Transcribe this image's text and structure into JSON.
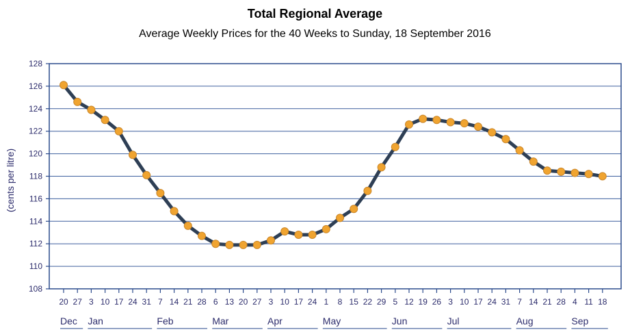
{
  "chart_data": {
    "type": "line",
    "title": "Total Regional Average",
    "subtitle": "Average Weekly Prices for the 40 Weeks to Sunday, 18 September 2016",
    "ylabel": "(cents per litre)",
    "xlabel": "",
    "ylim": [
      108,
      128
    ],
    "yticks": [
      "108",
      "110",
      "112",
      "114",
      "116",
      "118",
      "120",
      "122",
      "124",
      "126",
      "128"
    ],
    "grid": "horizontal",
    "x_day_labels": [
      "20",
      "27",
      "3",
      "10",
      "17",
      "24",
      "31",
      "7",
      "14",
      "21",
      "28",
      "6",
      "13",
      "20",
      "27",
      "3",
      "10",
      "17",
      "24",
      "1",
      "8",
      "15",
      "22",
      "29",
      "5",
      "12",
      "19",
      "26",
      "3",
      "10",
      "17",
      "24",
      "31",
      "7",
      "14",
      "21",
      "28",
      "4",
      "11",
      "18"
    ],
    "months": [
      {
        "label": "Dec",
        "first_index": 0,
        "last_index": 1
      },
      {
        "label": "Jan",
        "first_index": 2,
        "last_index": 6
      },
      {
        "label": "Feb",
        "first_index": 7,
        "last_index": 10
      },
      {
        "label": "Mar",
        "first_index": 11,
        "last_index": 14
      },
      {
        "label": "Apr",
        "first_index": 15,
        "last_index": 18
      },
      {
        "label": "May",
        "first_index": 19,
        "last_index": 23
      },
      {
        "label": "Jun",
        "first_index": 24,
        "last_index": 27
      },
      {
        "label": "Jul",
        "first_index": 28,
        "last_index": 32
      },
      {
        "label": "Aug",
        "first_index": 33,
        "last_index": 36
      },
      {
        "label": "Sep",
        "first_index": 37,
        "last_index": 39
      }
    ],
    "series": [
      {
        "values": [
          126.1,
          124.6,
          123.9,
          123.0,
          122.0,
          119.9,
          118.1,
          116.5,
          114.9,
          113.6,
          112.7,
          112.0,
          111.9,
          111.9,
          111.9,
          112.3,
          113.1,
          112.8,
          112.8,
          113.3,
          114.3,
          115.1,
          116.7,
          118.8,
          120.6,
          122.6,
          123.1,
          123.0,
          122.8,
          122.7,
          122.4,
          121.9,
          121.3,
          120.3,
          119.3,
          118.5,
          118.4,
          118.3,
          118.2,
          118.0
        ]
      }
    ],
    "colors": {
      "line": "#2e3f55",
      "marker": "#f0a430",
      "marker_edge": "#c9862a",
      "grid": "#3d5f9e",
      "axis": "#2a4a8c",
      "label": "#2b2b6b"
    }
  }
}
